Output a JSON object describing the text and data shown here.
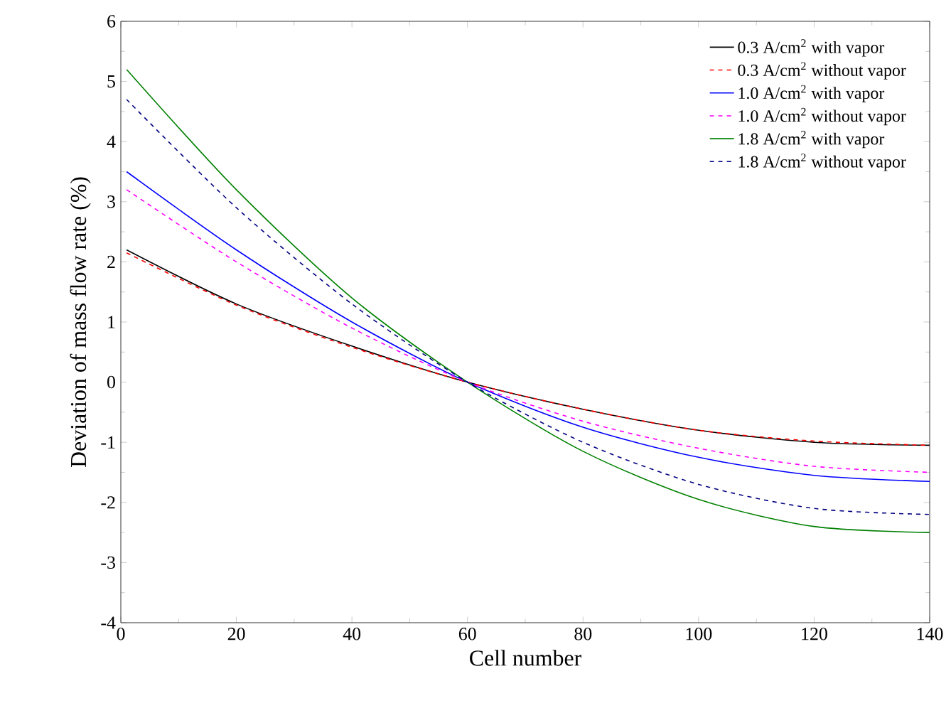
{
  "chart_data": {
    "type": "line",
    "xlabel": "Cell number",
    "ylabel": "Deviation of mass flow rate (%)",
    "x": [
      1,
      20,
      40,
      60,
      80,
      100,
      120,
      140
    ],
    "xlim": [
      0,
      140
    ],
    "xticks": [
      0,
      20,
      40,
      60,
      80,
      100,
      120,
      140
    ],
    "ylim": [
      -4,
      6
    ],
    "yticks": [
      -4,
      -3,
      -2,
      -1,
      0,
      1,
      2,
      3,
      4,
      5,
      6
    ],
    "legend": "top right",
    "grid": false,
    "marker": "none",
    "series": [
      {
        "name": "0.3 A/cm$^{2}$ with vapor",
        "color": "#000000",
        "line_style": "solid",
        "values": [
          2.2,
          1.3,
          0.6,
          0,
          -0.45,
          -0.8,
          -1.0,
          -1.05
        ]
      },
      {
        "name": "0.3 A/cm$^{2}$ without vapor",
        "color": "#ff0000",
        "line_style": "dashed",
        "values": [
          2.15,
          1.28,
          0.58,
          0,
          -0.45,
          -0.8,
          -0.98,
          -1.05
        ]
      },
      {
        "name": "1.0 A/cm$^{2}$ with vapor",
        "color": "#0000ff",
        "line_style": "solid",
        "values": [
          3.5,
          2.2,
          1.0,
          0,
          -0.75,
          -1.25,
          -1.55,
          -1.65
        ]
      },
      {
        "name": "1.0 A/cm$^{2}$ without vapor",
        "color": "#ff00ff",
        "line_style": "dashed",
        "values": [
          3.2,
          2.0,
          0.9,
          0,
          -0.65,
          -1.1,
          -1.4,
          -1.5
        ]
      },
      {
        "name": "1.8 A/cm$^{2}$ with vapor",
        "color": "#008000",
        "line_style": "solid",
        "values": [
          5.2,
          3.2,
          1.4,
          0,
          -1.15,
          -1.95,
          -2.4,
          -2.5
        ]
      },
      {
        "name": "1.8 A/cm$^{2}$ without vapor",
        "color": "#000080",
        "line_style": "dashed",
        "values": [
          4.7,
          2.9,
          1.3,
          0,
          -1.0,
          -1.7,
          -2.1,
          -2.2
        ]
      }
    ]
  }
}
